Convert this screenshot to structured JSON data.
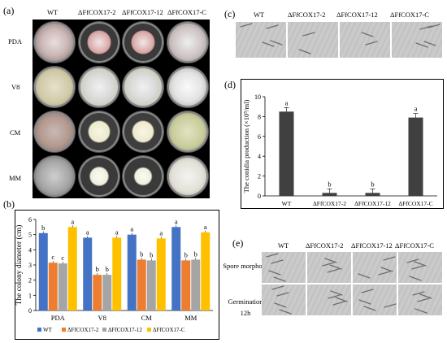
{
  "panel_a": {
    "label": "(a)",
    "columns": [
      "WT",
      "ΔFfCOX17-2",
      "ΔFfCOX17-12",
      "ΔFfCOX17-C"
    ],
    "rows": [
      "PDA",
      "V8",
      "CM",
      "MM"
    ]
  },
  "panel_b": {
    "label": "(b)"
  },
  "panel_c": {
    "label": "(c)",
    "columns": [
      "WT",
      "ΔFfCOX17-2",
      "ΔFfCOX17-12",
      "ΔFfCOX17-C"
    ]
  },
  "panel_d": {
    "label": "(d)"
  },
  "panel_e": {
    "label": "(e)",
    "columns": [
      "WT",
      "ΔFfCOX17-2",
      "ΔFfCOX17-12",
      "ΔFfCOX17-C"
    ],
    "rows": [
      "Spore morphology",
      "Germination 12h"
    ]
  },
  "colors": {
    "wt": "#4472c4",
    "ko2": "#ed7d31",
    "ko12": "#a5a5a5",
    "comp": "#ffc000",
    "bar_dark": "#404040"
  },
  "chart_data": [
    {
      "id": "colony-diameter",
      "type": "bar",
      "ylabel": "The colony diameter (cm)",
      "ylim": [
        0,
        6
      ],
      "yticks": [
        0,
        1,
        2,
        3,
        4,
        5,
        6
      ],
      "categories": [
        "PDA",
        "V8",
        "CM",
        "MM"
      ],
      "series": [
        {
          "name": "WT",
          "color": "#4472c4",
          "values": [
            5.1,
            4.8,
            5.0,
            5.5
          ],
          "letters": [
            "b",
            "a",
            "a",
            "a"
          ]
        },
        {
          "name": "ΔFfCOX17-2",
          "color": "#ed7d31",
          "values": [
            3.15,
            2.35,
            3.35,
            3.3
          ],
          "letters": [
            "c",
            "b",
            "b",
            "b"
          ]
        },
        {
          "name": "ΔFfCOX17-12",
          "color": "#a5a5a5",
          "values": [
            3.1,
            2.35,
            3.3,
            3.35
          ],
          "letters": [
            "c",
            "b",
            "b",
            "b"
          ]
        },
        {
          "name": "ΔFfCOX17-C",
          "color": "#ffc000",
          "values": [
            5.5,
            4.8,
            4.75,
            5.15
          ],
          "letters": [
            "a",
            "a",
            "a",
            "a"
          ]
        }
      ],
      "legend_position": "bottom"
    },
    {
      "id": "conidia-production",
      "type": "bar",
      "ylabel": "The conidia production (×10⁵/ml)",
      "ylim": [
        0,
        10
      ],
      "yticks": [
        0,
        2,
        4,
        6,
        8,
        10
      ],
      "categories": [
        "WT",
        "ΔFfCOX17-2",
        "ΔFfCOX17-12",
        "ΔFfCOX17-C"
      ],
      "values": [
        8.5,
        0.3,
        0.3,
        7.9
      ],
      "letters": [
        "a",
        "b",
        "b",
        "a"
      ],
      "color": "#404040"
    }
  ]
}
